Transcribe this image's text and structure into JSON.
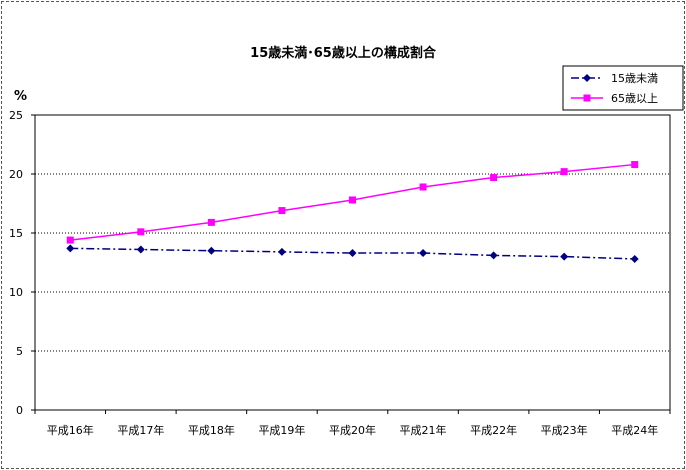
{
  "chart_data": {
    "type": "line",
    "title": "15歳未満･65歳以上の構成割合",
    "ylabel": "%",
    "xlabel": "",
    "categories": [
      "平成16年",
      "平成17年",
      "平成18年",
      "平成19年",
      "平成20年",
      "平成21年",
      "平成22年",
      "平成23年",
      "平成24年"
    ],
    "ylim": [
      0,
      25
    ],
    "yticks": [
      0,
      5,
      10,
      15,
      20,
      25
    ],
    "grid": "horizontal-dotted",
    "legend_position": "top-right",
    "series": [
      {
        "name": "15歳未満",
        "values": [
          13.7,
          13.6,
          13.5,
          13.4,
          13.3,
          13.3,
          13.1,
          13.0,
          12.8
        ],
        "color": "#000080",
        "line_style": "dash-dot",
        "marker": "diamond"
      },
      {
        "name": "65歳以上",
        "values": [
          14.4,
          15.1,
          15.9,
          16.9,
          17.8,
          18.9,
          19.7,
          20.2,
          20.8
        ],
        "color": "#ff00ff",
        "line_style": "solid",
        "marker": "square"
      }
    ]
  }
}
